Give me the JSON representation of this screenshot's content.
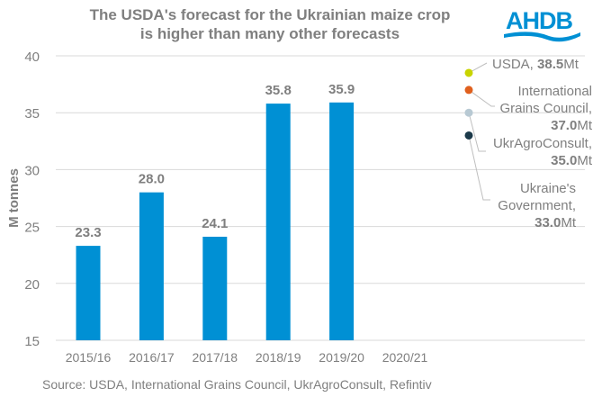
{
  "chart_data": {
    "type": "bar",
    "title_lines": [
      "The USDA's forecast for the Ukrainian maize crop",
      "is higher than many other forecasts"
    ],
    "ylabel": "M tonnes",
    "xlabel": "",
    "ylim": [
      15,
      40
    ],
    "yticks": [
      15,
      20,
      25,
      30,
      35,
      40
    ],
    "grid": true,
    "categories": [
      "2015/16",
      "2016/17",
      "2017/18",
      "2018/19",
      "2019/20",
      "2020/21"
    ],
    "values": [
      23.3,
      28.0,
      24.1,
      35.8,
      35.9,
      null
    ],
    "data_labels": [
      "23.3",
      "28.0",
      "24.1",
      "35.8",
      "35.9",
      ""
    ],
    "bar_color": "#0090d4",
    "forecasts": [
      {
        "name_lines": [
          "USDA,"
        ],
        "value": 38.5,
        "value_label": "38.5",
        "unit": "Mt",
        "color": "#c8d400"
      },
      {
        "name_lines": [
          "International",
          "Grains Council,"
        ],
        "value": 37.0,
        "value_label": "37.0",
        "unit": "Mt",
        "color": "#e0601e"
      },
      {
        "name_lines": [
          "UkrAgroConsult,"
        ],
        "value": 35.0,
        "value_label": "35.0",
        "unit": "Mt",
        "color": "#b8c9d3"
      },
      {
        "name_lines": [
          "Ukraine's",
          "Government,"
        ],
        "value": 33.0,
        "value_label": "33.0",
        "unit": "Mt",
        "color": "#1c3a4a"
      }
    ],
    "source": "Source: USDA, International Grains Council, UkrAgroConsult, Refintiv"
  },
  "logo": {
    "text": "AHDB",
    "color": "#0090d4"
  }
}
